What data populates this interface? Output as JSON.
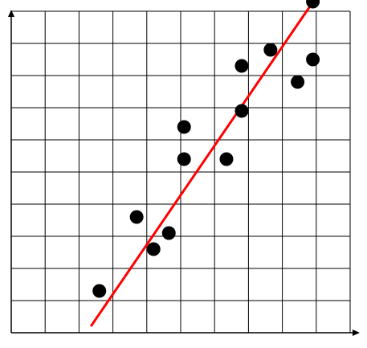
{
  "chart_data": {
    "type": "scatter",
    "title": "",
    "xlabel": "",
    "ylabel": "",
    "x_ticks": [
      0,
      1,
      2,
      3,
      4,
      5,
      6,
      7,
      8,
      9,
      10
    ],
    "y_ticks": [
      0,
      1,
      2,
      3,
      4,
      5,
      6,
      7,
      8,
      9,
      10
    ],
    "xlim": [
      0,
      10.2
    ],
    "ylim": [
      0,
      11.4
    ],
    "grid": true,
    "show_tick_labels": false,
    "series": [
      {
        "points": [
          [
            2.6,
            1.3
          ],
          [
            3.7,
            3.6
          ],
          [
            4.2,
            2.6
          ],
          [
            4.65,
            3.1
          ],
          [
            5.1,
            5.4
          ],
          [
            5.1,
            6.4
          ],
          [
            6.35,
            5.4
          ],
          [
            6.8,
            6.9
          ],
          [
            6.8,
            8.3
          ],
          [
            7.65,
            8.8
          ],
          [
            8.45,
            7.8
          ],
          [
            8.9,
            8.5
          ],
          [
            8.9,
            10.3
          ]
        ]
      }
    ],
    "trendline": {
      "x1": 2.35,
      "y1": 0.2,
      "x2": 9.3,
      "y2": 10.9
    },
    "colors": {
      "points": "#000000",
      "trendline": "#ff0000",
      "grid": "#000000",
      "axes": "#000000"
    }
  }
}
